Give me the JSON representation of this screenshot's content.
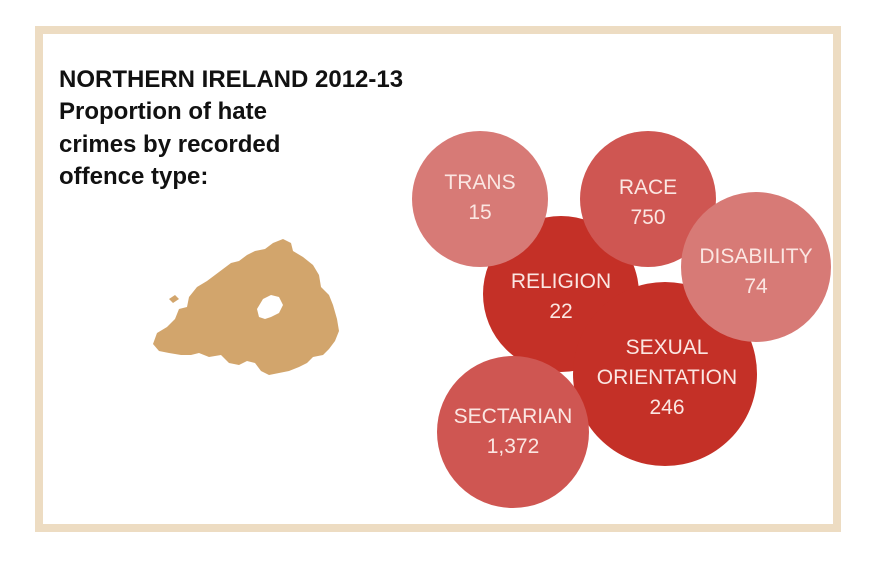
{
  "title": {
    "lines": [
      "NORTHERN IRELAND 2012-13",
      "Proportion of hate",
      "crimes by recorded",
      "offence type:"
    ]
  },
  "colors": {
    "frame": "#eddcc2",
    "map": "#d2a56c",
    "dark_bubble": "#c43027",
    "mid_bubble": "#cf5652",
    "light_bubble": "#d77a76"
  },
  "icons": {
    "map": "northern-ireland-map-icon"
  },
  "chart_data": {
    "type": "bubble",
    "title": "NORTHERN IRELAND 2012-13 Proportion of hate crimes by recorded offence type:",
    "series": [
      {
        "name": "TRANS",
        "label": [
          "TRANS",
          "15"
        ],
        "value": 15
      },
      {
        "name": "RACE",
        "label": [
          "RACE",
          "750"
        ],
        "value": 750
      },
      {
        "name": "DISABILITY",
        "label": [
          "DISABILITY",
          "74"
        ],
        "value": 74
      },
      {
        "name": "RELIGION",
        "label": [
          "RELIGION",
          "22"
        ],
        "value": 22
      },
      {
        "name": "SEXUAL ORIENTATION",
        "label": [
          "SEXUAL",
          "ORIENTATION",
          "246"
        ],
        "value": 246
      },
      {
        "name": "SECTARIAN",
        "label": [
          "SECTARIAN",
          "1,372"
        ],
        "value": 1372
      }
    ]
  }
}
